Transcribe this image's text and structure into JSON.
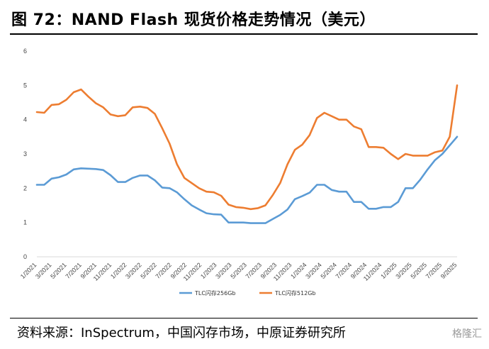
{
  "title": "图 72：NAND Flash 现货价格走势情况（美元）",
  "source": "资料来源：InSpectrum，中国闪存市场，中原证券研究所",
  "watermark": "格隆汇",
  "colors": {
    "tlc256": "#5B9BD5",
    "tlc512": "#ED7D31",
    "axis": "#d9d9d9"
  },
  "chart_data": {
    "type": "line",
    "title": "NAND Flash 现货价格走势情况（美元）",
    "xlabel": "",
    "ylabel": "",
    "ylim": [
      0,
      6
    ],
    "yticks": [
      "0",
      "1",
      "2",
      "3",
      "4",
      "5",
      "6"
    ],
    "xtick_labels": [
      "1/2021",
      "3/2021",
      "5/2021",
      "7/2021",
      "9/2021",
      "11/2021",
      "1/2022",
      "3/2022",
      "5/2022",
      "7/2022",
      "9/2022",
      "11/2022",
      "1/2023",
      "3/2023",
      "5/2023",
      "7/2023",
      "9/2023",
      "11/2023",
      "1/2024",
      "3/2024",
      "5/2024",
      "7/2024",
      "9/2024",
      "11/2024",
      "1/2025",
      "3/2025",
      "5/2025",
      "7/2025",
      "9/2025"
    ],
    "series": [
      {
        "name": "TLC闪存256Gb",
        "values": [
          2.1,
          2.1,
          2.28,
          2.32,
          2.4,
          2.55,
          2.58,
          2.57,
          2.56,
          2.53,
          2.38,
          2.18,
          2.18,
          2.3,
          2.37,
          2.37,
          2.23,
          2.02,
          2.0,
          1.88,
          1.68,
          1.5,
          1.38,
          1.27,
          1.24,
          1.23,
          1.0,
          1.0,
          1.0,
          0.98,
          0.98,
          0.98,
          1.1,
          1.22,
          1.38,
          1.68,
          1.77,
          1.87,
          2.1,
          2.1,
          1.95,
          1.9,
          1.9,
          1.6,
          1.6,
          1.4,
          1.4,
          1.45,
          1.45,
          1.6,
          2.0,
          2.0,
          2.25,
          2.55,
          2.82,
          3.0,
          3.25,
          3.5
        ]
      },
      {
        "name": "TLC闪存512Gb",
        "values": [
          4.22,
          4.2,
          4.43,
          4.45,
          4.58,
          4.8,
          4.88,
          4.67,
          4.48,
          4.36,
          4.15,
          4.1,
          4.13,
          4.36,
          4.38,
          4.34,
          4.17,
          3.75,
          3.3,
          2.7,
          2.3,
          2.15,
          2.0,
          1.9,
          1.88,
          1.78,
          1.52,
          1.45,
          1.43,
          1.39,
          1.42,
          1.5,
          1.8,
          2.15,
          2.7,
          3.12,
          3.27,
          3.55,
          4.05,
          4.2,
          4.1,
          4.0,
          4.0,
          3.8,
          3.72,
          3.2,
          3.2,
          3.18,
          3.0,
          2.85,
          3.0,
          2.95,
          2.95,
          2.95,
          3.05,
          3.1,
          3.5,
          5.0
        ]
      }
    ]
  }
}
